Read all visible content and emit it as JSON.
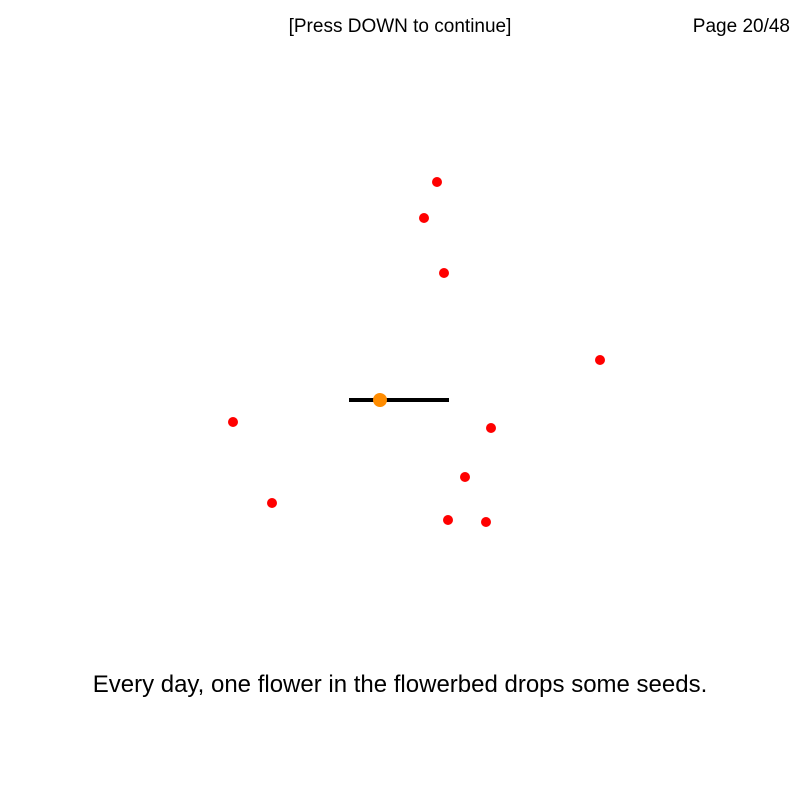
{
  "header": {
    "hint": "[Press DOWN to continue]",
    "page_counter": "Page 20/48"
  },
  "scene": {
    "flowerbed_color": "#000000",
    "flower_color": "#ff8c00",
    "seed_color": "#ff0000"
  },
  "caption": "Every day, one flower in the flowerbed drops some seeds."
}
